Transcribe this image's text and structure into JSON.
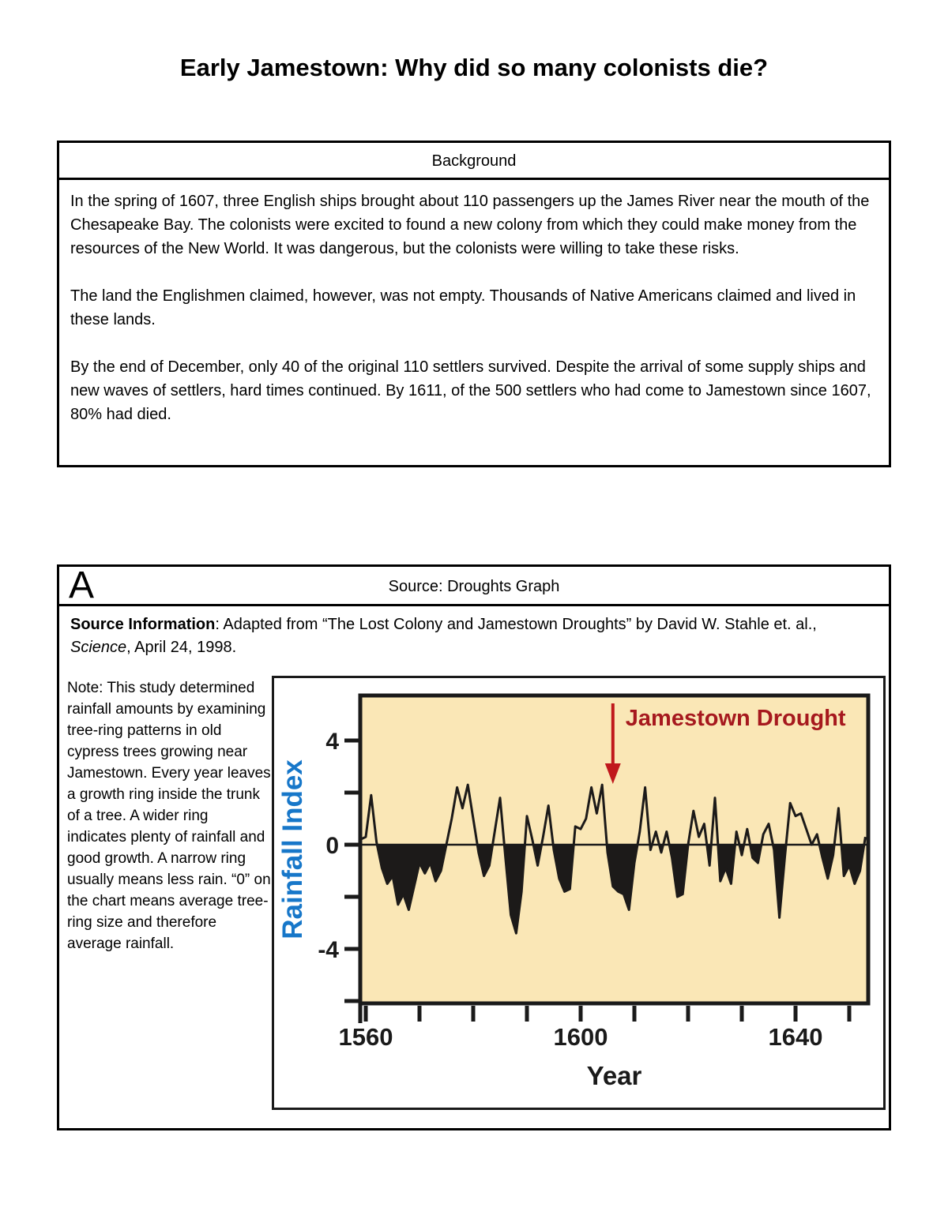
{
  "page": {
    "title": "Early Jamestown: Why did so many colonists die?"
  },
  "background": {
    "header": "Background",
    "paragraphs": [
      "In the spring of 1607, three English ships brought about 110 passengers up the James River near the mouth of the Chesapeake Bay. The colonists were excited to found a new colony from which they could make money from the resources of the New World. It was dangerous, but the colonists were willing to take these risks.",
      "The land the Englishmen claimed, however, was not empty. Thousands of Native Americans claimed and lived in these lands.",
      "By the end of December, only 40 of the original 110 settlers survived. Despite the arrival of some supply ships and new waves of settlers, hard times continued. By 1611, of the 500 settlers who had come to Jamestown since 1607, 80% had died."
    ]
  },
  "source_a": {
    "label": "A",
    "header": "Source: Droughts Graph",
    "source_info_label": "Source Information",
    "source_info_text": ": Adapted from “The Lost Colony and Jamestown Droughts” by David W. Stahle et. al., ",
    "source_info_journal": "Science",
    "source_info_tail": ", April 24, 1998.",
    "note": "Note: This study determined rainfall amounts by examining tree-ring patterns in old cypress trees growing near Jamestown.  Every year leaves a growth ring inside the trunk of a tree.  A wider ring indicates plenty of rainfall and good growth.  A narrow ring usually means less rain. “0” on the chart means average tree-ring size and therefore average rainfall."
  },
  "chart_data": {
    "type": "area",
    "ylabel": "Rainfall Index",
    "xlabel": "Year",
    "annotation": "Jamestown Drought",
    "annotation_year": 1606,
    "xlim": [
      1559,
      1654
    ],
    "ylim": [
      -6,
      6
    ],
    "x_ticks": [
      1560,
      1570,
      1580,
      1590,
      1600,
      1610,
      1620,
      1630,
      1640,
      1650
    ],
    "x_ticks_labeled": [
      1560,
      1600,
      1640
    ],
    "y_ticks": [
      4,
      2,
      0,
      -2,
      -4,
      -6
    ],
    "y_ticks_labeled": [
      4,
      0,
      -4
    ],
    "grid": false,
    "legend": "none",
    "fill_rule": "area below 0 filled black, above 0 unfilled line",
    "colors": {
      "plot_background": "#FAE7B6",
      "line": "#1C1A19",
      "fill_below_zero": "#1C1A19",
      "annotation_text": "#A6191E",
      "arrow": "#C0181C",
      "ylabel_blue": "#1777C9",
      "axis": "#1a1a1a"
    },
    "x": [
      1559,
      1560,
      1561,
      1562,
      1563,
      1564,
      1565,
      1566,
      1567,
      1568,
      1569,
      1570,
      1571,
      1572,
      1573,
      1574,
      1575,
      1576,
      1577,
      1578,
      1579,
      1580,
      1581,
      1582,
      1583,
      1584,
      1585,
      1586,
      1587,
      1588,
      1589,
      1590,
      1591,
      1592,
      1593,
      1594,
      1595,
      1596,
      1597,
      1598,
      1599,
      1600,
      1601,
      1602,
      1603,
      1604,
      1605,
      1606,
      1607,
      1608,
      1609,
      1610,
      1611,
      1612,
      1613,
      1614,
      1615,
      1616,
      1617,
      1618,
      1619,
      1620,
      1621,
      1622,
      1623,
      1624,
      1625,
      1626,
      1627,
      1628,
      1629,
      1630,
      1631,
      1632,
      1633,
      1634,
      1635,
      1636,
      1637,
      1638,
      1639,
      1640,
      1641,
      1642,
      1643,
      1644,
      1645,
      1646,
      1647,
      1648,
      1649,
      1650,
      1651,
      1652,
      1653
    ],
    "values": [
      0.2,
      0.3,
      1.9,
      0.1,
      -0.9,
      -1.5,
      -1.2,
      -2.3,
      -1.9,
      -2.5,
      -1.6,
      -0.7,
      -1.1,
      -0.7,
      -1.4,
      -1.0,
      0.0,
      1.0,
      2.2,
      1.4,
      2.3,
      1.0,
      -0.3,
      -1.2,
      -0.8,
      0.5,
      1.8,
      -0.5,
      -2.7,
      -3.4,
      -1.8,
      1.1,
      0.2,
      -0.8,
      0.3,
      1.5,
      -0.2,
      -1.3,
      -1.8,
      -1.7,
      0.7,
      0.6,
      1.0,
      2.2,
      1.2,
      2.3,
      -0.3,
      -1.6,
      -1.8,
      -1.9,
      -2.5,
      -0.7,
      0.5,
      2.2,
      -0.2,
      0.5,
      -0.3,
      0.5,
      -0.5,
      -2.0,
      -1.9,
      0.0,
      1.3,
      0.3,
      0.8,
      -0.8,
      1.8,
      -1.4,
      -0.9,
      -1.5,
      0.5,
      -0.4,
      0.6,
      -0.5,
      -0.7,
      0.4,
      0.8,
      -0.2,
      -2.8,
      -0.5,
      1.6,
      1.1,
      1.2,
      0.6,
      0.0,
      0.4,
      -0.5,
      -1.3,
      -0.4,
      1.4,
      -1.2,
      -0.8,
      -1.5,
      -1.0,
      0.3
    ]
  }
}
